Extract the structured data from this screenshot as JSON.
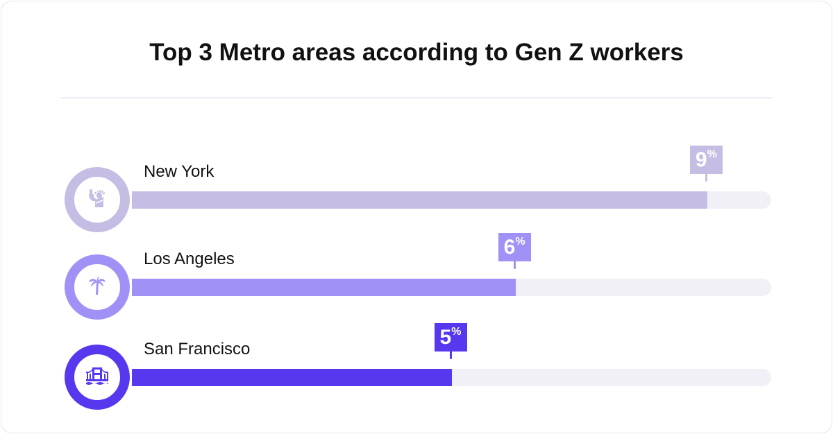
{
  "chart_data": {
    "type": "bar",
    "orientation": "horizontal",
    "title": "Top 3 Metro areas according to Gen Z workers",
    "categories": [
      "New York",
      "Los Angeles",
      "San Francisco"
    ],
    "values": [
      9,
      6,
      5
    ],
    "value_labels": [
      "9",
      "6",
      "5"
    ],
    "unit": "%",
    "xlim": [
      0,
      10
    ],
    "grid": false,
    "colors": [
      "#c5bde3",
      "#a091f7",
      "#5838ee"
    ],
    "icons": [
      "statue-of-liberty-icon",
      "palm-tree-icon",
      "golden-gate-bridge-icon"
    ]
  },
  "colors": {
    "track": "#f1f0f6"
  }
}
